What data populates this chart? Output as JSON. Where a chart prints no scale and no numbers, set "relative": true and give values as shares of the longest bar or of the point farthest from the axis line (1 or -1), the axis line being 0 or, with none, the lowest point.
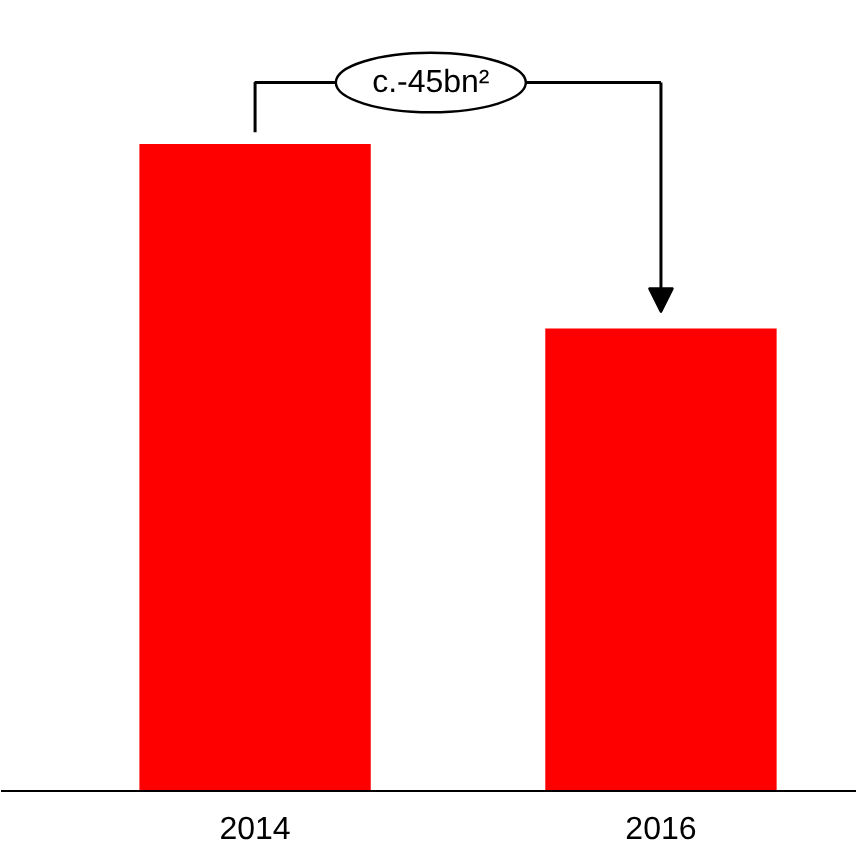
{
  "chart_data": {
    "type": "bar",
    "relative": true,
    "categories": [
      "2014",
      "2016"
    ],
    "values": [
      1,
      0.715
    ],
    "color": "#ff0000",
    "annotations": [
      "c.-45bn²"
    ]
  }
}
